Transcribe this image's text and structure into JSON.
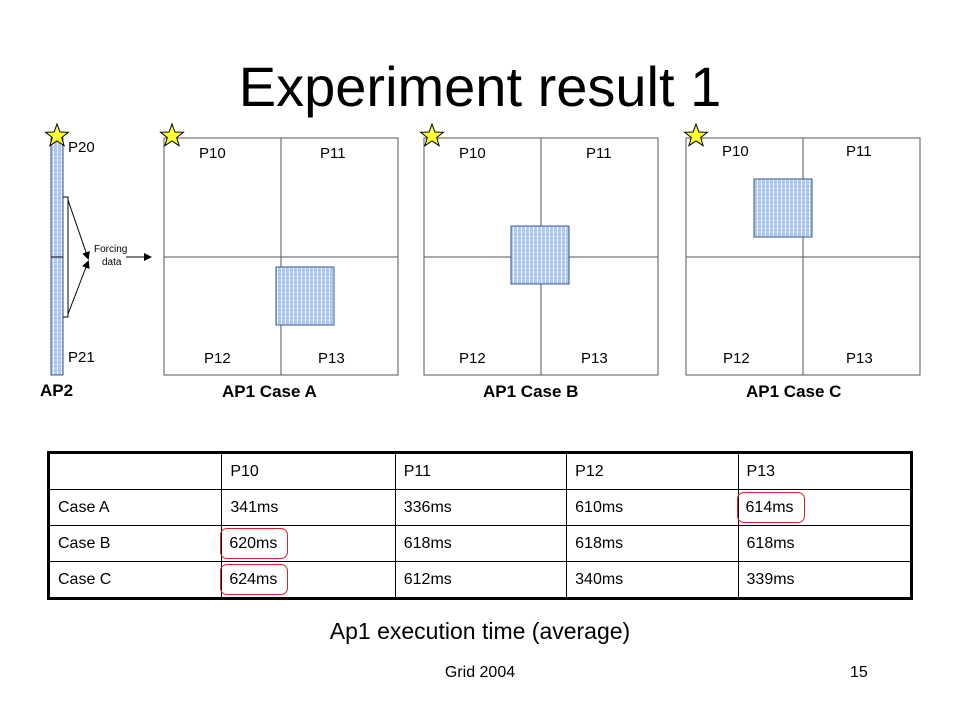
{
  "title": "Experiment result 1",
  "ap2": {
    "label": "AP2",
    "top_label": "P20",
    "bottom_label": "P21",
    "arrow_label_line1": "Forcing",
    "arrow_label_line2": "data"
  },
  "cases": [
    {
      "label": "AP1 Case A",
      "quadrants": [
        "P10",
        "P11",
        "P12",
        "P13"
      ]
    },
    {
      "label": "AP1 Case B",
      "quadrants": [
        "P10",
        "P11",
        "P12",
        "P13"
      ]
    },
    {
      "label": "AP1 Case C",
      "quadrants": [
        "P10",
        "P11",
        "P12",
        "P13"
      ]
    }
  ],
  "table": {
    "headers": [
      "",
      "P10",
      "P11",
      "P12",
      "P13"
    ],
    "rows": [
      {
        "case": "Case A",
        "values": [
          "341ms",
          "336ms",
          "610ms",
          "614ms"
        ]
      },
      {
        "case": "Case B",
        "values": [
          "620ms",
          "618ms",
          "618ms",
          "618ms"
        ]
      },
      {
        "case": "Case C",
        "values": [
          "624ms",
          "612ms",
          "340ms",
          "339ms"
        ]
      }
    ],
    "highlighted_cells": [
      "Case A / P13",
      "Case B / P10",
      "Case C / P10"
    ]
  },
  "caption": "Ap1 execution time (average)",
  "footer": {
    "center": "Grid 2004",
    "page_number": "15"
  },
  "colors": {
    "highlight": "#e0202a",
    "star": "#ffff33",
    "block_fill": "#aec8ee"
  }
}
